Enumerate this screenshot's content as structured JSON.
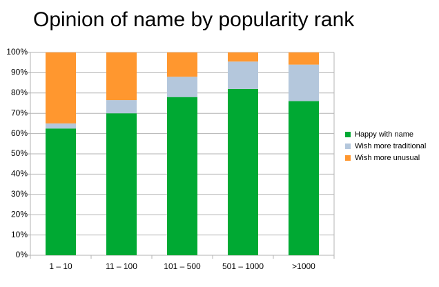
{
  "chart_data": {
    "type": "stacked_bar",
    "title": "Opinion of name by popularity rank",
    "categories": [
      "1 – 10",
      "11 – 100",
      "101 – 500",
      "501 – 1000",
      ">1000"
    ],
    "series": [
      {
        "name": "Happy with name",
        "color": "#00a933",
        "values": [
          62.5,
          70,
          78,
          82,
          76
        ]
      },
      {
        "name": "Wish more traditional",
        "color": "#b4c7dc",
        "values": [
          2.5,
          6.5,
          10,
          13.5,
          18
        ]
      },
      {
        "name": "Wish more unusual",
        "color": "#ff972f",
        "values": [
          35,
          23.5,
          12,
          4.5,
          6
        ]
      }
    ],
    "ylim": [
      0,
      100
    ],
    "yticks": [
      {
        "value": 0,
        "label": "0%"
      },
      {
        "value": 10,
        "label": "10%"
      },
      {
        "value": 20,
        "label": "20%"
      },
      {
        "value": 30,
        "label": "30%"
      },
      {
        "value": 40,
        "label": "40%"
      },
      {
        "value": 50,
        "label": "50%"
      },
      {
        "value": 60,
        "label": "60%"
      },
      {
        "value": 70,
        "label": "70%"
      },
      {
        "value": 80,
        "label": "80%"
      },
      {
        "value": 90,
        "label": "90%"
      },
      {
        "value": 100,
        "label": "100%"
      }
    ],
    "grid": true,
    "legend": "right"
  }
}
